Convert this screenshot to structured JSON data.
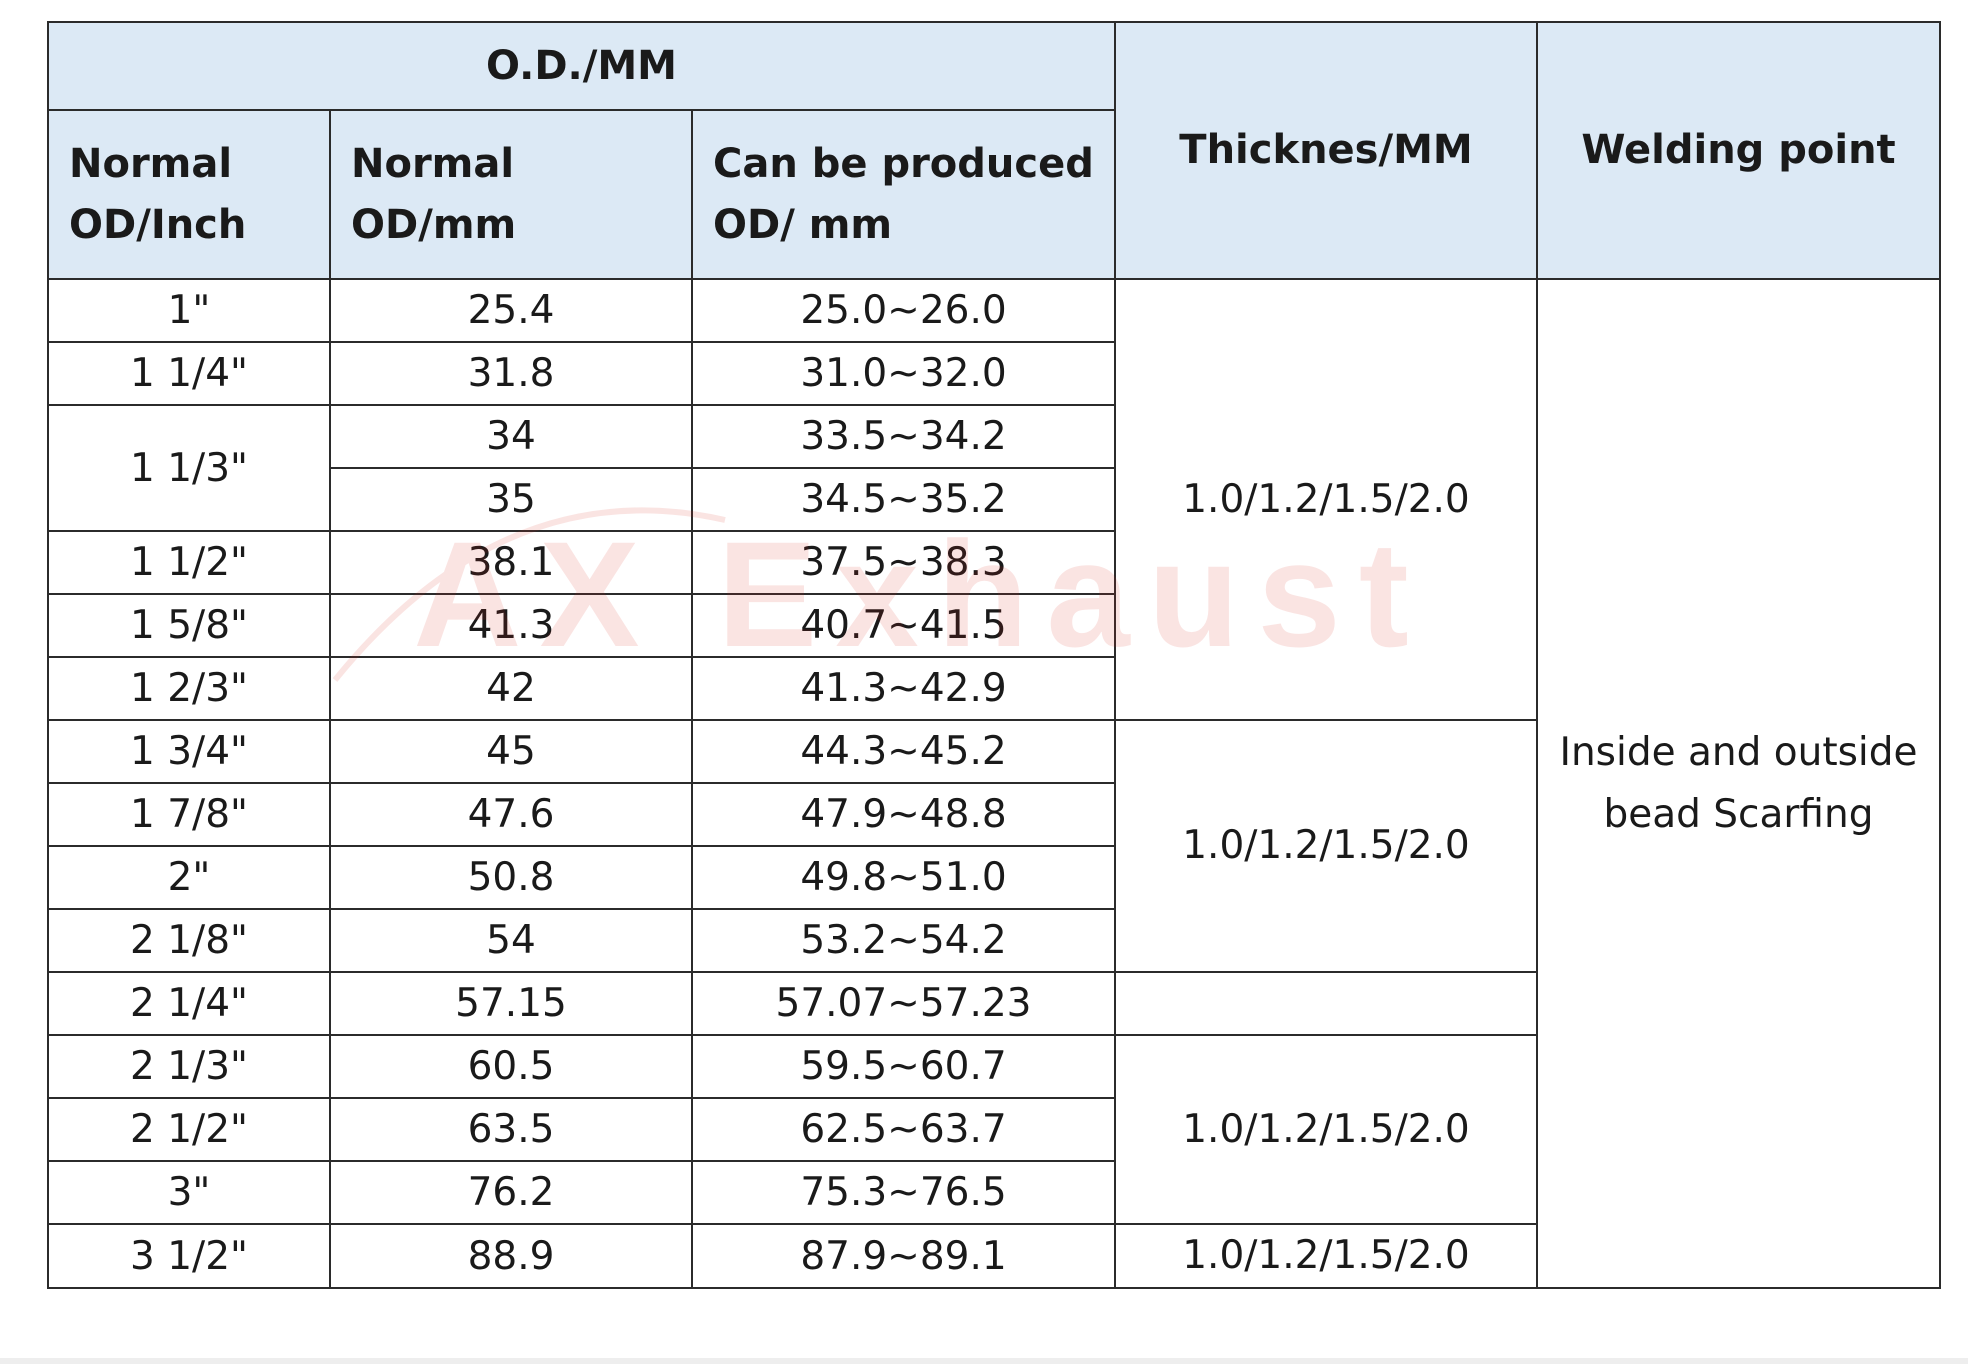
{
  "header": {
    "group_od": "O.D./MM",
    "col_normal_inch_line1": "Normal",
    "col_normal_inch_line2": "OD/Inch",
    "col_normal_mm_line1": "Normal",
    "col_normal_mm_line2": "OD/mm",
    "col_produced_line1": "Can be produced",
    "col_produced_line2": "OD/ mm",
    "col_thickness": "Thicknes/MM",
    "col_welding": "Welding point"
  },
  "watermark": {
    "text": "AX Exhaust",
    "color": "#d9271e"
  },
  "rows": [
    {
      "inch": "1\"",
      "mm": "25.4",
      "produced": "25.0~26.0"
    },
    {
      "inch": "1 1/4\"",
      "mm": "31.8",
      "produced": "31.0~32.0"
    },
    {
      "inch": "1 1/3\"",
      "mm": "34",
      "produced": "33.5~34.2"
    },
    {
      "mm": "35",
      "produced": "34.5~35.2"
    },
    {
      "inch": "1 1/2\"",
      "mm": "38.1",
      "produced": "37.5~38.3"
    },
    {
      "inch": "1 5/8\"",
      "mm": "41.3",
      "produced": "40.7~41.5"
    },
    {
      "inch": "1 2/3\"",
      "mm": "42",
      "produced": "41.3~42.9"
    },
    {
      "inch": "1 3/4\"",
      "mm": "45",
      "produced": "44.3~45.2"
    },
    {
      "inch": "1 7/8\"",
      "mm": "47.6",
      "produced": "47.9~48.8"
    },
    {
      "inch": "2\"",
      "mm": "50.8",
      "produced": "49.8~51.0"
    },
    {
      "inch": "2 1/8\"",
      "mm": "54",
      "produced": "53.2~54.2"
    },
    {
      "inch": "2 1/4\"",
      "mm": "57.15",
      "produced": "57.07~57.23"
    },
    {
      "inch": "2 1/3\"",
      "mm": "60.5",
      "produced": "59.5~60.7"
    },
    {
      "inch": "2 1/2\"",
      "mm": "63.5",
      "produced": "62.5~63.7"
    },
    {
      "inch": "3\"",
      "mm": "76.2",
      "produced": "75.3~76.5"
    },
    {
      "inch": "3 1/2\"",
      "mm": "88.9",
      "produced": "87.9~89.1"
    }
  ],
  "thickness": {
    "group1": "1.0/1.2/1.5/2.0",
    "group2": "1.0/1.2/1.5/2.0",
    "group3": "",
    "group4": "1.0/1.2/1.5/2.0",
    "group5": "1.0/1.2/1.5/2.0"
  },
  "welding": {
    "line1": "Inside and outside",
    "line2": "bead Scarfing"
  }
}
